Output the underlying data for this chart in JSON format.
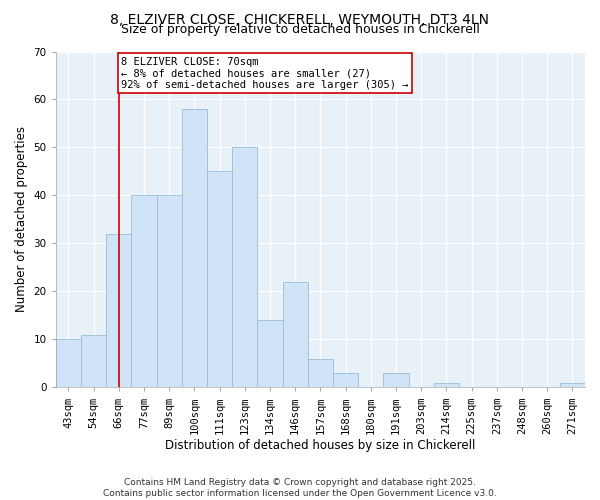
{
  "title": "8, ELZIVER CLOSE, CHICKERELL, WEYMOUTH, DT3 4LN",
  "subtitle": "Size of property relative to detached houses in Chickerell",
  "xlabel": "Distribution of detached houses by size in Chickerell",
  "ylabel": "Number of detached properties",
  "bar_labels": [
    "43sqm",
    "54sqm",
    "66sqm",
    "77sqm",
    "89sqm",
    "100sqm",
    "111sqm",
    "123sqm",
    "134sqm",
    "146sqm",
    "157sqm",
    "168sqm",
    "180sqm",
    "191sqm",
    "203sqm",
    "214sqm",
    "225sqm",
    "237sqm",
    "248sqm",
    "260sqm",
    "271sqm"
  ],
  "bar_values": [
    10,
    11,
    32,
    40,
    40,
    58,
    45,
    50,
    14,
    22,
    6,
    3,
    0,
    3,
    0,
    1,
    0,
    0,
    0,
    0,
    1
  ],
  "bar_color": "#d0e4f7",
  "bar_edge_color": "#9bbdd6",
  "annotation_line_x_label": "66sqm",
  "annotation_line_color": "#cc0000",
  "annotation_text_line1": "8 ELZIVER CLOSE: 70sqm",
  "annotation_text_line2": "← 8% of detached houses are smaller (27)",
  "annotation_text_line3": "92% of semi-detached houses are larger (305) →",
  "annotation_box_color": "white",
  "annotation_box_edge_color": "#cc0000",
  "ylim": [
    0,
    70
  ],
  "yticks": [
    0,
    10,
    20,
    30,
    40,
    50,
    60,
    70
  ],
  "footnote_line1": "Contains HM Land Registry data © Crown copyright and database right 2025.",
  "footnote_line2": "Contains public sector information licensed under the Open Government Licence v3.0.",
  "plot_bg_color": "#e8f0f8",
  "fig_bg_color": "#ffffff",
  "grid_color": "#ffffff",
  "title_fontsize": 10,
  "subtitle_fontsize": 9,
  "axis_label_fontsize": 8.5,
  "tick_fontsize": 7.5,
  "annotation_fontsize": 7.5,
  "footnote_fontsize": 6.5
}
